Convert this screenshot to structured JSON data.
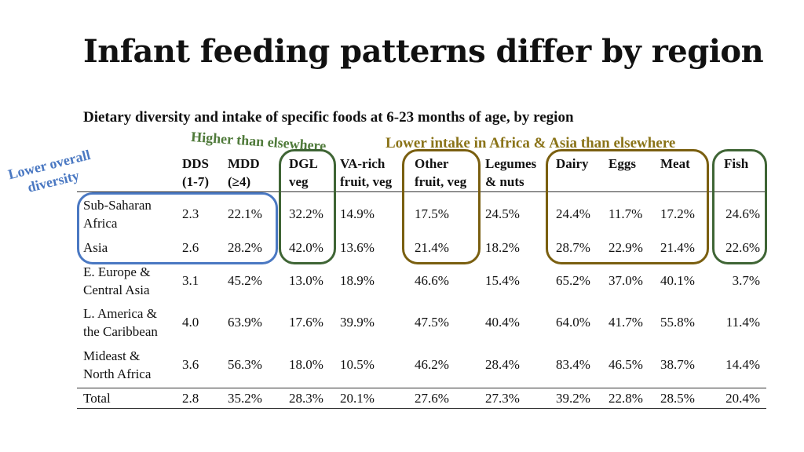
{
  "title": "Infant feeding patterns differ by region",
  "chart_data": {
    "type": "table",
    "title": "Dietary diversity and intake of specific foods at 6-23 months of age, by region",
    "columns": [
      {
        "line1": "DDS",
        "line2": "(1-7)"
      },
      {
        "line1": "MDD",
        "line2": "(≥4)"
      },
      {
        "line1": "DGL",
        "line2": "veg"
      },
      {
        "line1": "VA-rich",
        "line2": "fruit, veg"
      },
      {
        "line1": "Other",
        "line2": "fruit, veg"
      },
      {
        "line1": "Legumes",
        "line2": "& nuts"
      },
      {
        "line1": "Dairy",
        "line2": ""
      },
      {
        "line1": "Eggs",
        "line2": ""
      },
      {
        "line1": "Meat",
        "line2": ""
      },
      {
        "line1": "Fish",
        "line2": ""
      }
    ],
    "rows": [
      {
        "region": [
          "Sub-Saharan",
          "Africa"
        ],
        "values": [
          "2.3",
          "22.1%",
          "32.2%",
          "14.9%",
          "17.5%",
          "24.5%",
          "24.4%",
          "11.7%",
          "17.2%",
          "24.6%"
        ]
      },
      {
        "region": [
          "Asia"
        ],
        "values": [
          "2.6",
          "28.2%",
          "42.0%",
          "13.6%",
          "21.4%",
          "18.2%",
          "28.7%",
          "22.9%",
          "21.4%",
          "22.6%"
        ]
      },
      {
        "region": [
          "E. Europe &",
          "Central Asia"
        ],
        "values": [
          "3.1",
          "45.2%",
          "13.0%",
          "18.9%",
          "46.6%",
          "15.4%",
          "65.2%",
          "37.0%",
          "40.1%",
          "3.7%"
        ]
      },
      {
        "region": [
          "L. America &",
          "the Caribbean"
        ],
        "values": [
          "4.0",
          "63.9%",
          "17.6%",
          "39.9%",
          "47.5%",
          "40.4%",
          "64.0%",
          "41.7%",
          "55.8%",
          "11.4%"
        ]
      },
      {
        "region": [
          "Mideast &",
          "North Africa"
        ],
        "values": [
          "3.6",
          "56.3%",
          "18.0%",
          "10.5%",
          "46.2%",
          "28.4%",
          "83.4%",
          "46.5%",
          "38.7%",
          "14.4%"
        ]
      },
      {
        "region": [
          "Total"
        ],
        "values": [
          "2.8",
          "35.2%",
          "28.3%",
          "20.1%",
          "27.6%",
          "27.3%",
          "39.2%",
          "22.8%",
          "28.5%",
          "20.4%"
        ]
      }
    ],
    "annotations": {
      "higher": "Higher than elsewhere",
      "lower_intake": "Lower intake in Africa & Asia than elsewhere",
      "lower_overall_line1": "Lower overall",
      "lower_overall_line2": "diversity"
    }
  },
  "colors": {
    "blue": "#4a78c2",
    "green": "#3f6535",
    "gold": "#7a5f10"
  }
}
